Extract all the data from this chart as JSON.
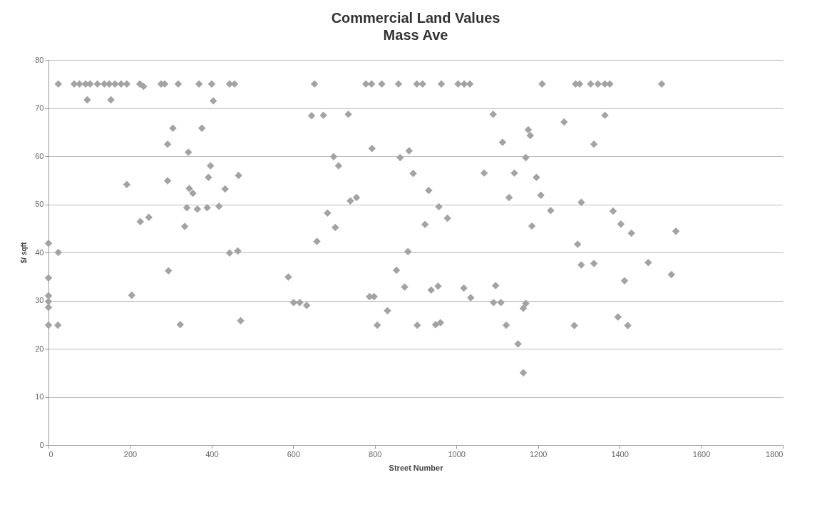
{
  "chart_data": {
    "type": "scatter",
    "title": "Commercial Land Values",
    "subtitle": "Mass Ave",
    "xlabel": "Street Number",
    "ylabel": "$/ sqft",
    "xlim": [
      0,
      1800
    ],
    "xticks": [
      0,
      200,
      400,
      600,
      800,
      1000,
      1200,
      1400,
      1600,
      1800
    ],
    "ylim": [
      0,
      80
    ],
    "yticks": [
      0,
      10,
      20,
      30,
      40,
      50,
      60,
      70,
      80
    ],
    "grid": "y",
    "marker": "diamond",
    "series": [
      {
        "color": "#a3a3a3",
        "x": [
          24,
          63,
          76,
          91,
          102,
          120,
          137,
          149,
          163,
          178,
          192,
          95,
          153,
          224,
          233,
          276,
          285,
          318,
          369,
          400,
          404,
          444,
          456,
          305,
          376,
          292,
          343,
          397,
          392,
          292,
          466,
          192,
          345,
          354,
          433,
          339,
          365,
          389,
          418,
          225,
          246,
          334,
          0,
          24,
          444,
          464,
          294,
          0,
          204,
          0,
          0,
          0,
          0,
          23,
          323,
          471,
          652,
          778,
          792,
          817,
          858,
          903,
          917,
          963,
          1004,
          1019,
          1033,
          645,
          674,
          735,
          1090,
          1176,
          1181,
          1113,
          793,
          884,
          862,
          699,
          711,
          1170,
          894,
          1068,
          1142,
          1196,
          932,
          1129,
          1207,
          740,
          755,
          957,
          978,
          684,
          923,
          1185,
          703,
          658,
          881,
          853,
          588,
          873,
          938,
          955,
          1018,
          1096,
          1035,
          787,
          798,
          601,
          616,
          633,
          1091,
          1109,
          1170,
          1164,
          831,
          806,
          904,
          949,
          961,
          1122,
          1151,
          1164,
          1210,
          1292,
          1302,
          1329,
          1347,
          1364,
          1376,
          1503,
          1364,
          1264,
          1337,
          1306,
          1231,
          1384,
          1403,
          1429,
          1538,
          1297,
          1306,
          1337,
          1470,
          1527,
          1412,
          1396,
          1289,
          1420
        ],
        "values": [
          75,
          75,
          75,
          75,
          75,
          75,
          75,
          75,
          75,
          75,
          75,
          71.7,
          71.7,
          75,
          74.5,
          75,
          75,
          75,
          75,
          75,
          71.5,
          75,
          75,
          65.8,
          65.8,
          62.5,
          60.8,
          58,
          55.6,
          54.9,
          56,
          54.1,
          53.3,
          52.3,
          53.2,
          49.3,
          49,
          49.3,
          49.6,
          46.4,
          47.3,
          45.4,
          41.9,
          40,
          39.9,
          40.3,
          36.2,
          34.7,
          31.1,
          31,
          29.8,
          28.6,
          24.9,
          24.9,
          25,
          25.8,
          75,
          75,
          75,
          75,
          75,
          75,
          75,
          75,
          75,
          75,
          75,
          68.4,
          68.5,
          68.7,
          68.7,
          65.5,
          64.3,
          62.9,
          61.6,
          61.1,
          59.7,
          59.9,
          58,
          59.7,
          56.4,
          56.5,
          56.5,
          55.6,
          52.9,
          51.4,
          51.9,
          50.7,
          51.4,
          49.5,
          47.1,
          48.2,
          45.8,
          45.5,
          45.2,
          42.3,
          40.2,
          36.3,
          34.9,
          32.8,
          32.2,
          33,
          32.6,
          33.1,
          30.6,
          30.8,
          30.8,
          29.6,
          29.6,
          29,
          29.6,
          29.6,
          29.4,
          28.4,
          27.9,
          24.9,
          24.9,
          25,
          25.4,
          24.9,
          21,
          15,
          75,
          75,
          75,
          75,
          75,
          75,
          75,
          75,
          68.5,
          67.1,
          62.5,
          50.4,
          48.7,
          48.6,
          45.9,
          44,
          44.4,
          41.7,
          37.4,
          37.7,
          37.9,
          35.4,
          34.1,
          26.6,
          24.8,
          24.8
        ]
      }
    ]
  }
}
